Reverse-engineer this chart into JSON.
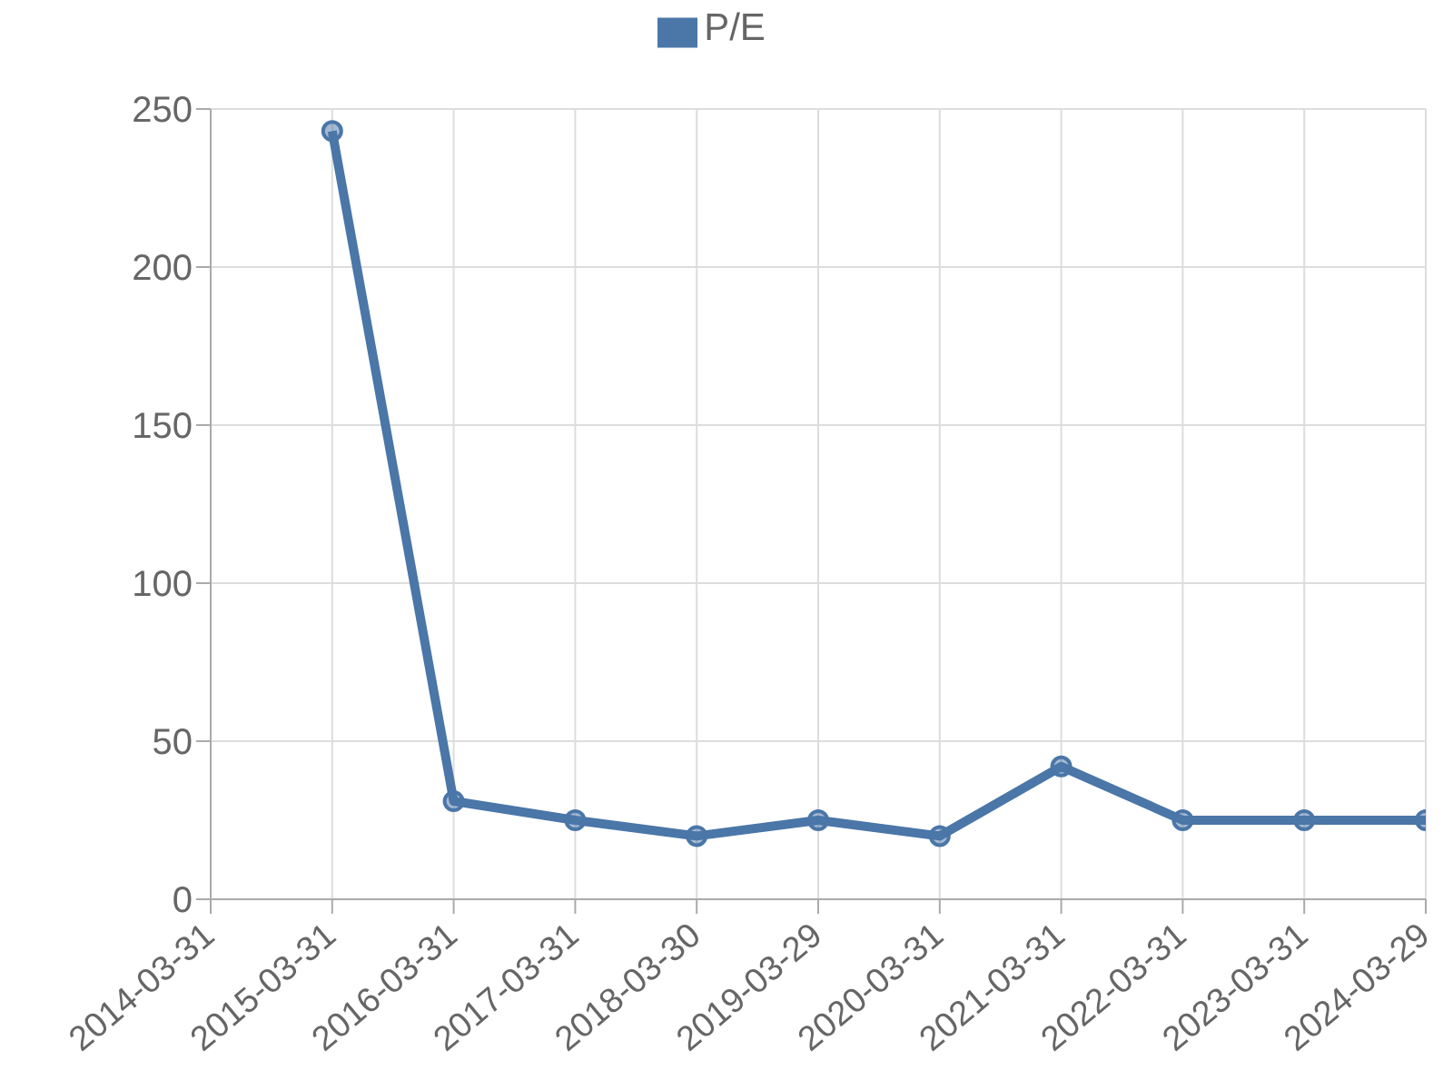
{
  "chart_data": {
    "type": "line",
    "categories": [
      "2014-03-31",
      "2015-03-31",
      "2016-03-31",
      "2017-03-31",
      "2018-03-30",
      "2019-03-29",
      "2020-03-31",
      "2021-03-31",
      "2022-03-31",
      "2023-03-31",
      "2024-03-29"
    ],
    "series": [
      {
        "name": "P/E",
        "color": "#4a76a8",
        "values": [
          null,
          243,
          31,
          25,
          20,
          25,
          20,
          42,
          25,
          25,
          25
        ]
      }
    ],
    "ylim": [
      0,
      250
    ],
    "yticks": [
      0,
      50,
      100,
      150,
      200,
      250
    ],
    "grid": true,
    "legend": "top",
    "marker": "circle",
    "line_style": "solid"
  }
}
